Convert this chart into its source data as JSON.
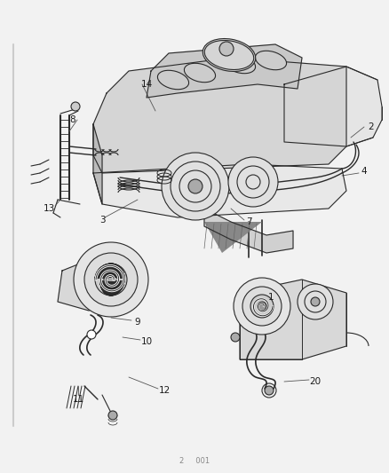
{
  "bg_color": "#f0f0f0",
  "line_color": "#2a2a2a",
  "label_color": "#1a1a1a",
  "fig_width": 4.38,
  "fig_height": 5.33,
  "dpi": 100,
  "footer_text": "2     001"
}
